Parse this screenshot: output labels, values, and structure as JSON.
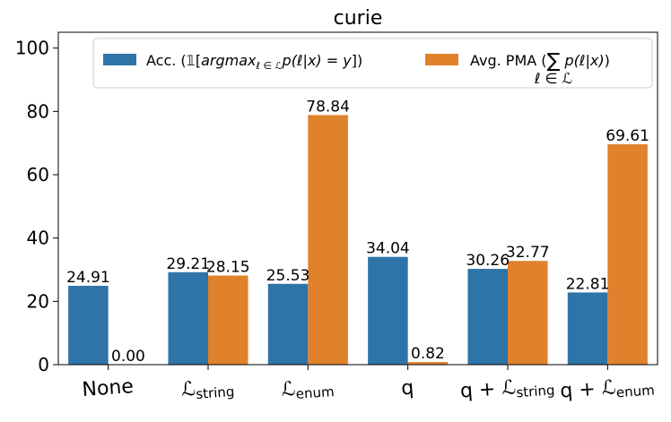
{
  "chart_data": {
    "type": "bar",
    "title": "curie",
    "xlabel": "",
    "ylabel": "",
    "ylim": [
      0,
      105
    ],
    "yticks": [
      "0",
      "20",
      "40",
      "60",
      "80",
      "100"
    ],
    "categories": [
      "None",
      "ℒstring",
      "ℒenum",
      "q",
      "q + ℒstring",
      "q + ℒenum"
    ],
    "category_parts": [
      {
        "base": "None",
        "sub": ""
      },
      {
        "base": "ℒ",
        "sub": "string"
      },
      {
        "base": "ℒ",
        "sub": "enum"
      },
      {
        "base": "q",
        "sub": ""
      },
      {
        "base": "q + ℒ",
        "sub": "string"
      },
      {
        "base": "q + ℒ",
        "sub": "enum"
      }
    ],
    "series": [
      {
        "name": "Acc. (𝟙[argmaxℓ∈ℒ p(ℓ|x) = y])",
        "color": "#2f74a8",
        "values": [
          24.91,
          29.21,
          25.53,
          34.04,
          30.26,
          22.81
        ],
        "labels": [
          "24.91",
          "29.21",
          "25.53",
          "34.04",
          "30.26",
          "22.81"
        ]
      },
      {
        "name": "Avg. PMA (∑ℓ∈ℒ p(ℓ|x))",
        "color": "#e0812c",
        "values": [
          0.0,
          28.15,
          78.84,
          0.82,
          32.77,
          69.61
        ],
        "labels": [
          "0.00",
          "28.15",
          "78.84",
          "0.82",
          "32.77",
          "69.61"
        ]
      }
    ],
    "legend": {
      "placement": "top-right",
      "acc_prefix": "Acc. (𝟙[",
      "acc_math": "argmax",
      "acc_sub": "ℓ ∈ ℒ",
      "acc_suffix_math": "p(ℓ|x) = y",
      "acc_close": "])",
      "pma_prefix": "Avg. PMA (",
      "pma_sum": "∑",
      "pma_sub": "ℓ ∈ ℒ",
      "pma_math": "p(ℓ|x)",
      "pma_close": ")"
    }
  }
}
